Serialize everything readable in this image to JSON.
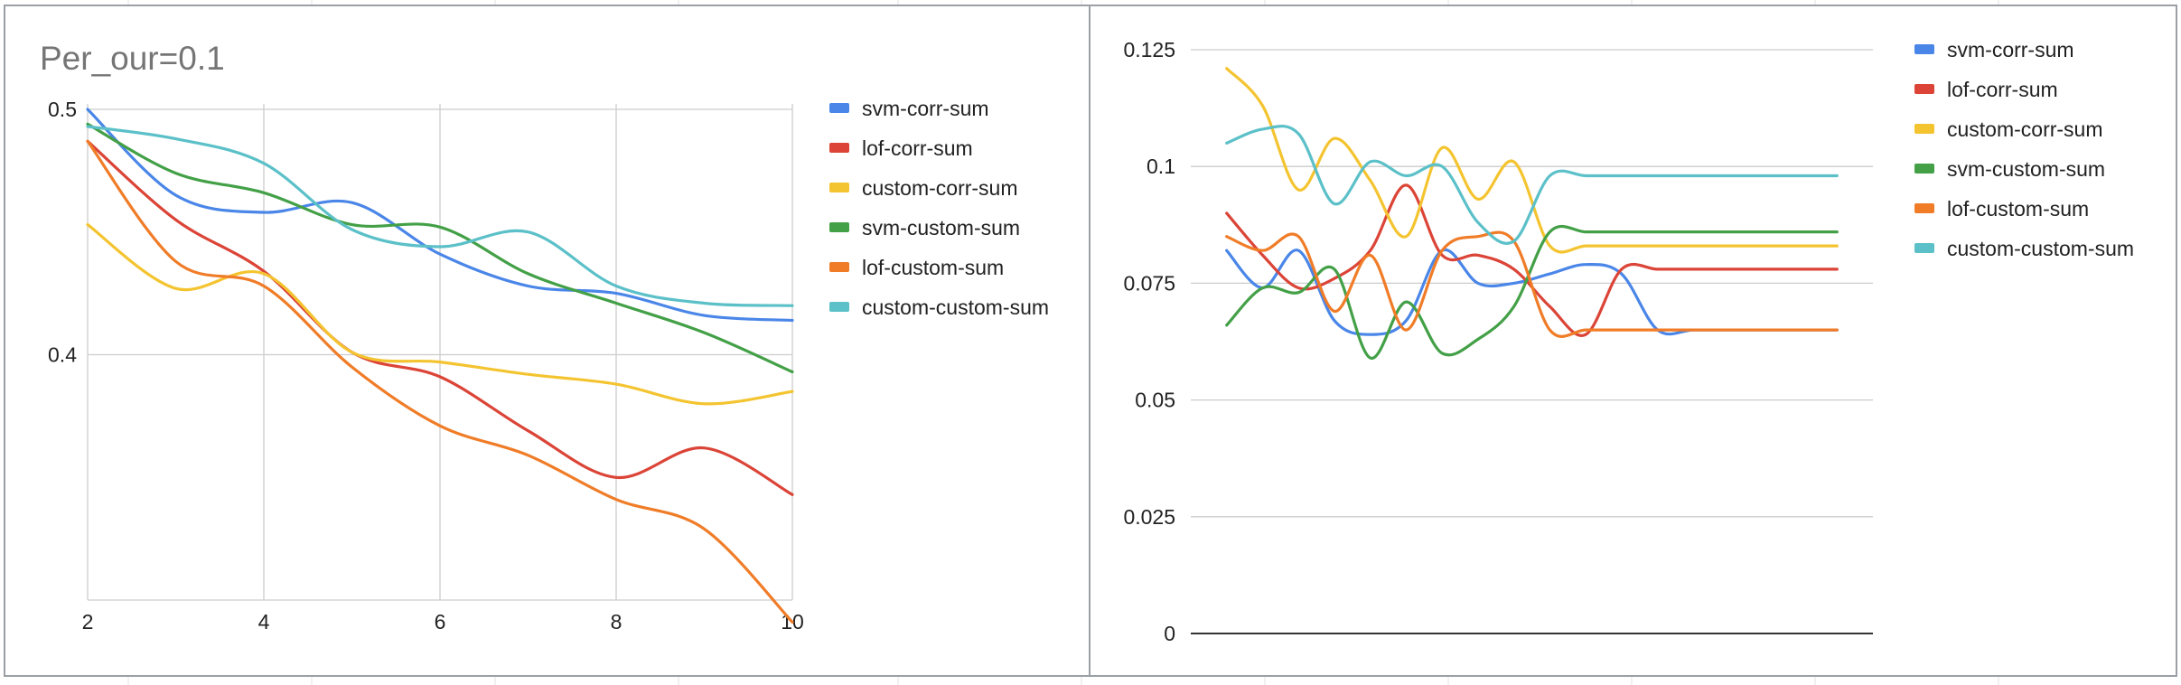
{
  "colors": {
    "svm-corr-sum": "#4a86e8",
    "lof-corr-sum": "#db4437",
    "custom-corr-sum": "#f4c430",
    "svm-custom-sum": "#43a047",
    "lof-custom-sum": "#f07c27",
    "custom-custom-sum": "#5bc0c8"
  },
  "chart_data": [
    {
      "type": "line",
      "title": "Per_our=0.1",
      "xlabel": "",
      "ylabel": "",
      "x": [
        2,
        3,
        4,
        5,
        6,
        7,
        8,
        9,
        10
      ],
      "xlim": [
        2,
        10
      ],
      "ylim": [
        0.3,
        0.5
      ],
      "x_ticks": [
        "2",
        "4",
        "6",
        "8",
        "10"
      ],
      "y_ticks": [
        "0.4",
        "0.5"
      ],
      "grid": true,
      "legend": "right",
      "series": [
        {
          "name": "svm-corr-sum",
          "values": [
            0.5,
            0.465,
            0.458,
            0.462,
            0.441,
            0.428,
            0.425,
            0.416,
            0.414
          ]
        },
        {
          "name": "lof-corr-sum",
          "values": [
            0.487,
            0.455,
            0.434,
            0.401,
            0.391,
            0.369,
            0.35,
            0.362,
            0.343
          ]
        },
        {
          "name": "custom-corr-sum",
          "values": [
            0.453,
            0.427,
            0.433,
            0.401,
            0.397,
            0.392,
            0.388,
            0.38,
            0.385
          ]
        },
        {
          "name": "svm-custom-sum",
          "values": [
            0.494,
            0.474,
            0.466,
            0.453,
            0.452,
            0.433,
            0.421,
            0.409,
            0.393
          ]
        },
        {
          "name": "lof-custom-sum",
          "values": [
            0.487,
            0.438,
            0.428,
            0.395,
            0.371,
            0.359,
            0.341,
            0.329,
            0.291
          ]
        },
        {
          "name": "custom-custom-sum",
          "values": [
            0.493,
            0.488,
            0.478,
            0.451,
            0.444,
            0.45,
            0.428,
            0.421,
            0.42
          ]
        }
      ]
    },
    {
      "type": "line",
      "title": "",
      "xlabel": "",
      "ylabel": "",
      "x": [
        1,
        2,
        3,
        4,
        5,
        6,
        7,
        8,
        9,
        10,
        11,
        12,
        13,
        14,
        15,
        16,
        17,
        18
      ],
      "xlim": [
        0,
        19
      ],
      "ylim": [
        0,
        0.125
      ],
      "y_ticks": [
        "0",
        "0.025",
        "0.05",
        "0.075",
        "0.1",
        "0.125"
      ],
      "grid": true,
      "legend": "top-right",
      "series": [
        {
          "name": "svm-corr-sum",
          "values": [
            0.082,
            0.074,
            0.082,
            0.067,
            0.064,
            0.067,
            0.082,
            0.075,
            0.075,
            0.077,
            0.079,
            0.077,
            0.065,
            0.065,
            0.065,
            0.065,
            0.065,
            0.065
          ]
        },
        {
          "name": "lof-corr-sum",
          "values": [
            0.09,
            0.081,
            0.074,
            0.076,
            0.082,
            0.096,
            0.081,
            0.081,
            0.078,
            0.07,
            0.064,
            0.078,
            0.078,
            0.078,
            0.078,
            0.078,
            0.078,
            0.078
          ]
        },
        {
          "name": "custom-corr-sum",
          "values": [
            0.121,
            0.113,
            0.095,
            0.106,
            0.097,
            0.085,
            0.104,
            0.093,
            0.101,
            0.083,
            0.083,
            0.083,
            0.083,
            0.083,
            0.083,
            0.083,
            0.083,
            0.083
          ]
        },
        {
          "name": "svm-custom-sum",
          "values": [
            0.066,
            0.074,
            0.073,
            0.078,
            0.059,
            0.071,
            0.06,
            0.063,
            0.07,
            0.086,
            0.086,
            0.086,
            0.086,
            0.086,
            0.086,
            0.086,
            0.086,
            0.086
          ]
        },
        {
          "name": "lof-custom-sum",
          "values": [
            0.085,
            0.082,
            0.085,
            0.069,
            0.081,
            0.065,
            0.082,
            0.085,
            0.084,
            0.065,
            0.065,
            0.065,
            0.065,
            0.065,
            0.065,
            0.065,
            0.065,
            0.065
          ]
        },
        {
          "name": "custom-custom-sum",
          "values": [
            0.105,
            0.108,
            0.107,
            0.092,
            0.101,
            0.098,
            0.1,
            0.088,
            0.084,
            0.098,
            0.098,
            0.098,
            0.098,
            0.098,
            0.098,
            0.098,
            0.098,
            0.098
          ]
        }
      ]
    }
  ]
}
